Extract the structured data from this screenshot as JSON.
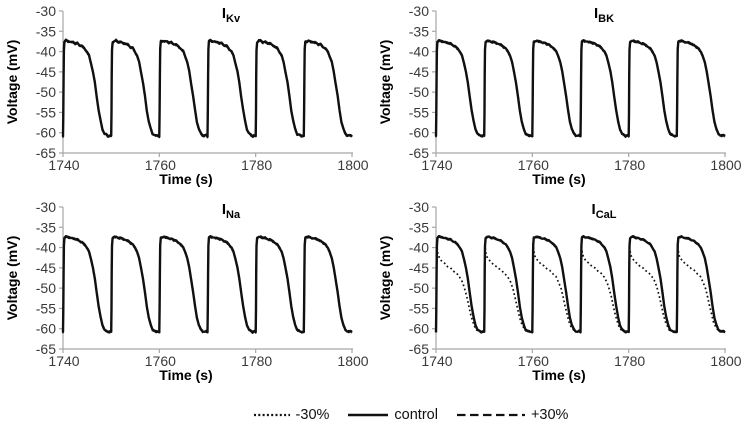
{
  "colors": {
    "line": "#111111",
    "axis": "#a6a6a6",
    "tick_label": "#3a3a3a",
    "text": "#000000",
    "background": "#ffffff"
  },
  "legend": {
    "items": [
      {
        "key": "minus30",
        "label": "-30%",
        "style": "dotted"
      },
      {
        "key": "control",
        "label": "control",
        "style": "solid"
      },
      {
        "key": "plus30",
        "label": "+30%",
        "style": "dashed"
      }
    ]
  },
  "chart_data": {
    "type": "line",
    "xlabel": "Time (s)",
    "ylabel": "Voltage (mV)",
    "xlim": [
      1740,
      1800
    ],
    "ylim": [
      -65,
      -30
    ],
    "xticks": [
      1740,
      1760,
      1780,
      1800
    ],
    "yticks": [
      -30,
      -35,
      -40,
      -45,
      -50,
      -55,
      -60,
      -65
    ],
    "grid": false,
    "legend_position": "bottom",
    "oscillation_period_s": 10,
    "burst_onsets_s": [
      1740,
      1750,
      1760,
      1770,
      1780,
      1790
    ],
    "profiles": {
      "control": [
        [
          0,
          -60.8
        ],
        [
          0.06,
          -55
        ],
        [
          0.12,
          -46
        ],
        [
          0.18,
          -39.5
        ],
        [
          0.3,
          -37.6
        ],
        [
          0.6,
          -37.4
        ],
        [
          1,
          -37.4
        ],
        [
          1.5,
          -37.6
        ],
        [
          2,
          -37.7
        ],
        [
          2.5,
          -37.9
        ],
        [
          3,
          -38.1
        ],
        [
          3.5,
          -38.4
        ],
        [
          4,
          -38.8
        ],
        [
          4.5,
          -39.3
        ],
        [
          5,
          -40.1
        ],
        [
          5.4,
          -41.1
        ],
        [
          5.8,
          -42.7
        ],
        [
          6.2,
          -44.9
        ],
        [
          6.6,
          -47.7
        ],
        [
          7,
          -51
        ],
        [
          7.4,
          -54.4
        ],
        [
          7.8,
          -57.2
        ],
        [
          8.2,
          -59.1
        ],
        [
          8.6,
          -60.2
        ],
        [
          9,
          -60.6
        ],
        [
          9.4,
          -60.8
        ],
        [
          9.7,
          -60.7
        ],
        [
          10,
          -60.8
        ]
      ],
      "ical_minus30": [
        [
          0,
          -60.8
        ],
        [
          0.06,
          -55
        ],
        [
          0.12,
          -46
        ],
        [
          0.2,
          -39.8
        ],
        [
          0.4,
          -41.6
        ],
        [
          0.7,
          -42.6
        ],
        [
          1.2,
          -43.3
        ],
        [
          1.8,
          -44
        ],
        [
          2.4,
          -44.6
        ],
        [
          3,
          -45.1
        ],
        [
          3.6,
          -45.7
        ],
        [
          4.2,
          -46.3
        ],
        [
          4.9,
          -47.2
        ],
        [
          5.5,
          -48.6
        ],
        [
          6,
          -50.3
        ],
        [
          6.4,
          -52.2
        ],
        [
          6.8,
          -54.4
        ],
        [
          7.2,
          -56.4
        ],
        [
          7.6,
          -58.2
        ],
        [
          8,
          -59.4
        ],
        [
          8.4,
          -60.2
        ],
        [
          8.8,
          -60.6
        ],
        [
          9.4,
          -60.8
        ],
        [
          10,
          -60.8
        ]
      ]
    },
    "subplots": [
      {
        "id": "ikv",
        "title_main": "I",
        "title_sub": "Kv",
        "jitter_mV": 0.22,
        "series": [
          {
            "key": "minus30",
            "name": "-30%",
            "style": "dotted",
            "profile": "control",
            "dy": 0.8
          },
          {
            "key": "control",
            "name": "control",
            "style": "solid",
            "profile": "control",
            "dy": 0
          },
          {
            "key": "plus30",
            "name": "+30%",
            "style": "dashed",
            "profile": "control",
            "dy": -0.8
          }
        ]
      },
      {
        "id": "ibk",
        "title_main": "I",
        "title_sub": "BK",
        "jitter_mV": 0.1,
        "series": [
          {
            "key": "minus30",
            "name": "-30%",
            "style": "dotted",
            "profile": "control",
            "dy": 0.8
          },
          {
            "key": "control",
            "name": "control",
            "style": "solid",
            "profile": "control",
            "dy": 0
          },
          {
            "key": "plus30",
            "name": "+30%",
            "style": "dashed",
            "profile": "control",
            "dy": -0.8
          }
        ]
      },
      {
        "id": "ina",
        "title_main": "I",
        "title_sub": "Na",
        "jitter_mV": 0.1,
        "series": [
          {
            "key": "minus30",
            "name": "-30%",
            "style": "dotted",
            "profile": "control",
            "dy": 0.8
          },
          {
            "key": "control",
            "name": "control",
            "style": "solid",
            "profile": "control",
            "dy": 0
          },
          {
            "key": "plus30",
            "name": "+30%",
            "style": "dashed",
            "profile": "control",
            "dy": -0.8
          }
        ]
      },
      {
        "id": "ical",
        "title_main": "I",
        "title_sub": "CaL",
        "jitter_mV": 0.12,
        "series": [
          {
            "key": "minus30",
            "name": "-30%",
            "style": "dotted",
            "profile": "ical_minus30",
            "dy": 0
          },
          {
            "key": "control",
            "name": "control",
            "style": "solid",
            "profile": "control",
            "dy": 0
          },
          {
            "key": "plus30",
            "name": "+30%",
            "style": "dashed",
            "profile": "control",
            "dy": -0.8
          }
        ]
      }
    ]
  }
}
